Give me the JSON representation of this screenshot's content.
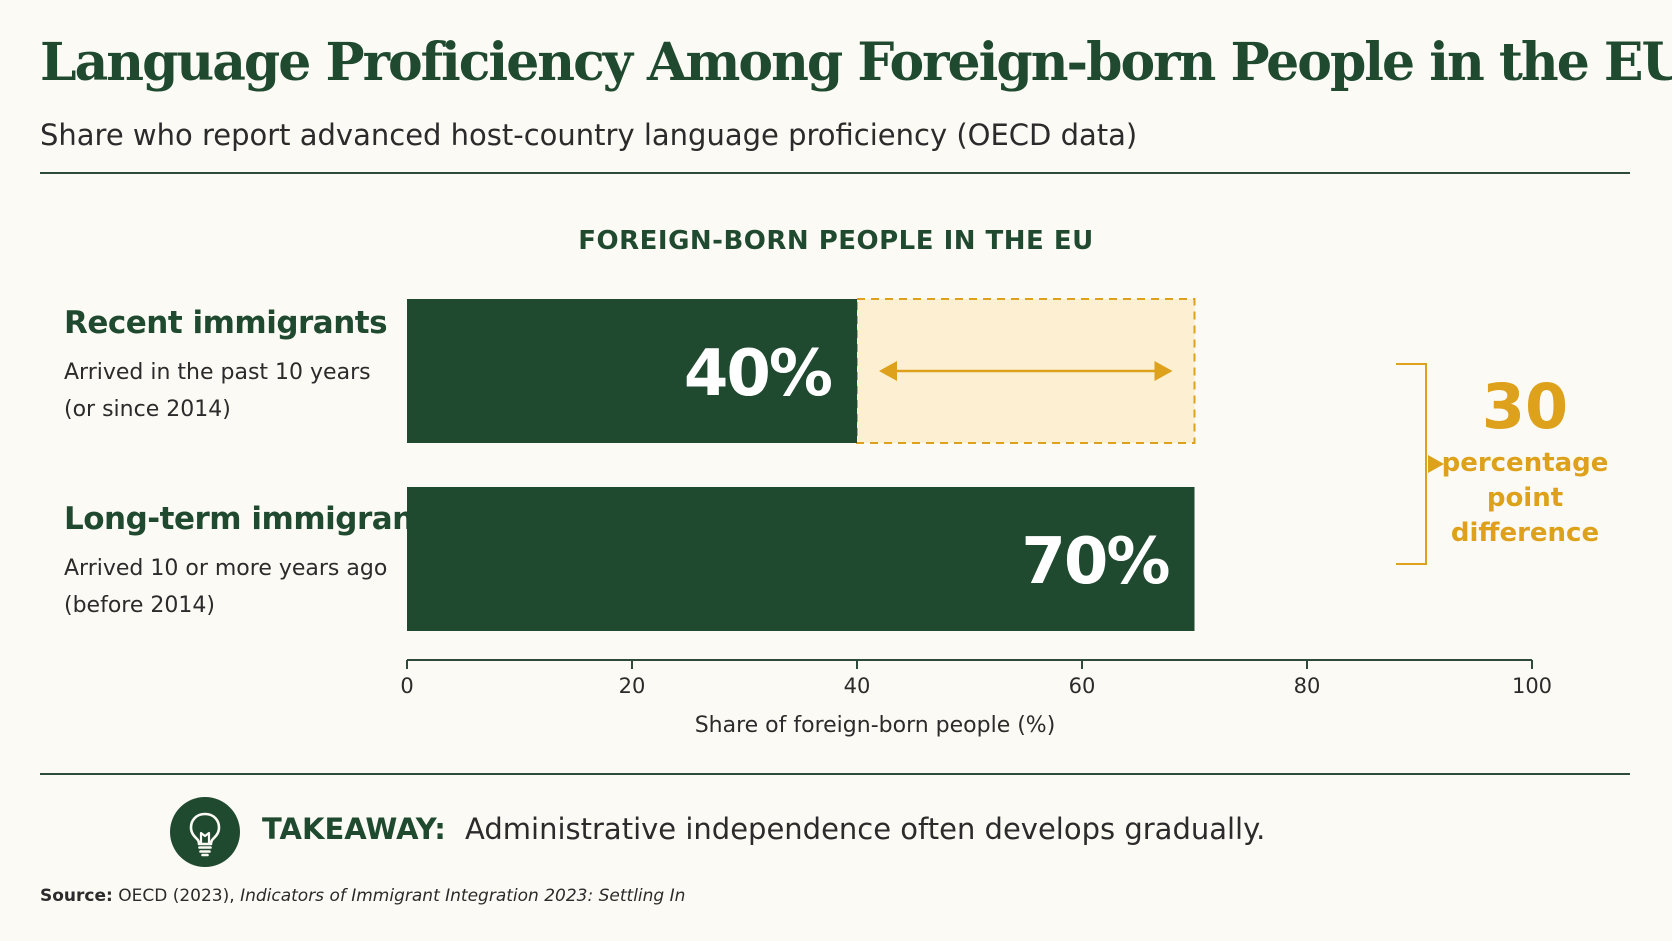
{
  "header": {
    "title": "Language Proficiency Among Foreign-born People in the EU",
    "subtitle": "Share who report advanced host-country language proficiency (OECD data)"
  },
  "chart_data": {
    "type": "bar",
    "orientation": "horizontal",
    "title": "FOREIGN-BORN PEOPLE IN THE EU",
    "categories": [
      "Recent immigrants",
      "Long-term immigrants"
    ],
    "category_notes": [
      [
        "Arrived in the past 10 years",
        "(or since 2014)"
      ],
      [
        "Arrived 10 or more years ago",
        "(before 2014)"
      ]
    ],
    "values": [
      40,
      70
    ],
    "value_labels": [
      "40%",
      "70%"
    ],
    "xlabel": "Share of foreign-born people (%)",
    "ylabel": "",
    "xlim": [
      0,
      100
    ],
    "xticks": [
      0,
      20,
      40,
      60,
      80,
      100
    ],
    "grid": false,
    "comparison": {
      "value": "30",
      "label_lines": [
        "percentage",
        "point",
        "difference"
      ]
    },
    "colors": {
      "bar": "#1f4a30",
      "gap_fill": "#fcefd2",
      "accent": "#dda11c"
    }
  },
  "takeaway": {
    "lead": "TAKEAWAY:",
    "text": "Administrative independence often develops gradually.",
    "icon": "lightbulb-icon"
  },
  "source": {
    "lead": "Source:",
    "org": "OECD (2023),",
    "publication": "Indicators of Immigrant Integration 2023: Settling In"
  }
}
